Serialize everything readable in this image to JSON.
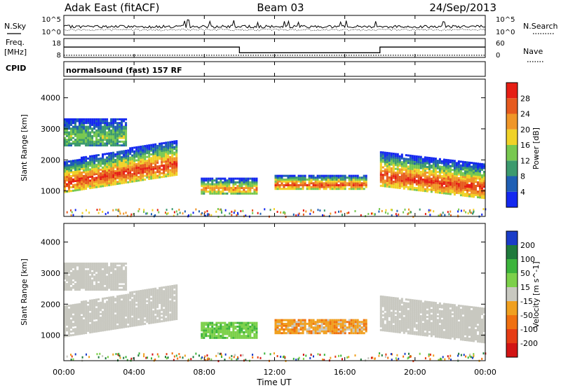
{
  "header": {
    "station": "Adak East (fitACF)",
    "beam": "Beam 03",
    "date": "24/Sep/2013"
  },
  "labels": {
    "n_sky": "N.Sky",
    "n_search": "N.Search",
    "freq": "Freq.",
    "freq_unit": "[MHz]",
    "nave": "Nave",
    "cpid": "CPID",
    "mode": "normalsound (fast) 157 RF",
    "xlabel": "Time UT",
    "ylabel_power_panel": "Slant Range [km]",
    "ylabel_velocity_panel": "Slant Range [km]"
  },
  "noise_axis": {
    "left_ticks": [
      "10^5",
      "10^0"
    ],
    "right_ticks": [
      "10^5",
      "10^0"
    ]
  },
  "freq_axis": {
    "left_ticks": [
      "18",
      "8"
    ],
    "right_ticks": [
      "60",
      "0"
    ]
  },
  "colors": {
    "power": [
      "#1428f0",
      "#1f5fb4",
      "#3c9a6e",
      "#78c850",
      "#f0d228",
      "#f09628",
      "#e65a1e",
      "#e61e14"
    ],
    "velocity": [
      "#1a3cc8",
      "#1f7a3c",
      "#3cb43c",
      "#7cd04a",
      "#c8c8c0",
      "#f0a020",
      "#f07010",
      "#e63c14",
      "#d21414"
    ]
  },
  "chart_data": [
    {
      "type": "line",
      "title": "",
      "series": [
        {
          "name": "N.Sky",
          "y_range": [
            "10^0",
            "10^5"
          ]
        },
        {
          "name": "N.Search",
          "y_range": [
            "10^0",
            "10^5"
          ]
        }
      ]
    },
    {
      "type": "line",
      "series": [
        {
          "name": "Freq.",
          "unit": "MHz",
          "x_hours": [
            0,
            10,
            10,
            18,
            18,
            24
          ],
          "values": [
            13.5,
            13.5,
            10.5,
            10.5,
            13.5,
            13.5
          ]
        },
        {
          "name": "Nave",
          "x_hours": [
            0,
            24
          ],
          "values": [
            7,
            7
          ]
        }
      ],
      "ylim_freq": [
        8,
        18
      ],
      "ylim_nave": [
        0,
        60
      ]
    },
    {
      "type": "heatmap",
      "quantity": "Power",
      "colorbar_label": "Power [dB]",
      "colorbar_ticks": [
        4,
        8,
        12,
        16,
        20,
        24,
        28
      ],
      "clim": [
        0,
        30
      ],
      "xlabel": "Time UT",
      "ylabel": "Slant Range [km]",
      "x_ticks": [
        "00:00",
        "04:00",
        "08:00",
        "12:00",
        "16:00",
        "20:00",
        "00:00"
      ],
      "xlim_hours": [
        0,
        24
      ],
      "y_ticks": [
        1000,
        2000,
        3000,
        4000
      ],
      "ylim_km": [
        180,
        4600
      ],
      "echo_regions": [
        {
          "t0": 0,
          "t1": 6.4,
          "r0": 1000,
          "r1": 2000,
          "peak": 27
        },
        {
          "t0": 0,
          "t1": 3.5,
          "r0": 2500,
          "r1": 3400,
          "peak": 14
        },
        {
          "t0": 7.8,
          "t1": 11,
          "r0": 950,
          "r1": 1450,
          "peak": 22
        },
        {
          "t0": 12,
          "t1": 17.2,
          "r0": 1100,
          "r1": 1550,
          "peak": 26
        },
        {
          "t0": 18,
          "t1": 24,
          "r0": 1200,
          "r1": 2300,
          "peak": 27
        }
      ]
    },
    {
      "type": "heatmap",
      "quantity": "Velocity",
      "colorbar_label": "Velocity [m s^-1]",
      "colorbar_ticks": [
        200,
        100,
        50,
        15,
        -15,
        -50,
        -100,
        -200
      ],
      "xlabel": "Time UT",
      "ylabel": "Slant Range [km]",
      "x_ticks": [
        "00:00",
        "04:00",
        "08:00",
        "12:00",
        "16:00",
        "20:00",
        "00:00"
      ],
      "xlim_hours": [
        0,
        24
      ],
      "y_ticks": [
        1000,
        2000,
        3000,
        4000
      ],
      "ylim_km": [
        180,
        4600
      ],
      "echo_regions": [
        {
          "t0": 0,
          "t1": 6.4,
          "r0": 1000,
          "r1": 2300,
          "class": "ground-scatter"
        },
        {
          "t0": 0,
          "t1": 3.5,
          "r0": 2500,
          "r1": 3400,
          "class": "ground-scatter"
        },
        {
          "t0": 8,
          "t1": 11,
          "r0": 850,
          "r1": 1400,
          "class": "positive",
          "velocity": 30
        },
        {
          "t0": 12,
          "t1": 17.2,
          "r0": 1100,
          "r1": 1650,
          "class": "negative",
          "velocity": -60
        },
        {
          "t0": 18,
          "t1": 24,
          "r0": 1200,
          "r1": 2300,
          "class": "ground-scatter"
        }
      ]
    }
  ]
}
